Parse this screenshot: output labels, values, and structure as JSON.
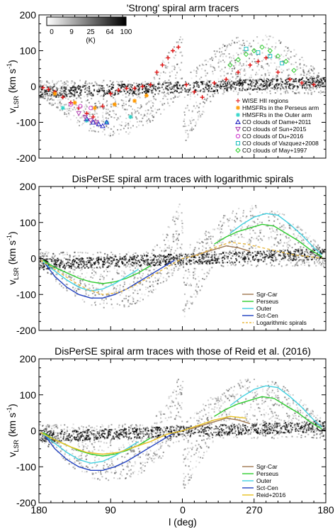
{
  "figure": {
    "shared_xlabel": "l (deg)",
    "x_ticks": [
      "180",
      "90",
      "0",
      "270",
      "180"
    ],
    "ylabel_main": "v",
    "ylabel_sub": "LSR",
    "ylabel_unit": " (km s",
    "ylabel_sup": "-1",
    "ylabel_close": ")"
  },
  "colorbar": {
    "ticks": [
      "0",
      "9",
      "25",
      "64",
      "100"
    ],
    "unit": "(K)"
  },
  "chart_data": [
    {
      "type": "scatter",
      "title": "'Strong' spiral arm tracers",
      "xlabel": "l (deg)",
      "ylabel": "vLSR (km s-1)",
      "xlim": [
        180,
        -180
      ],
      "ylim": [
        -200,
        200
      ],
      "y_ticks": [
        "200",
        "100",
        "0",
        "-100",
        "-200"
      ],
      "legend_position": "bottom-right",
      "background": "grey-scale CO brightness-temperature map (0-100 K)",
      "series": [
        {
          "name": "WISE HII regions",
          "marker": "+",
          "color": "#e01010",
          "x": [
            175,
            168,
            160,
            150,
            140,
            130,
            120,
            112,
            100,
            90,
            80,
            70,
            60,
            50,
            40,
            32,
            25,
            18,
            12,
            5,
            -5,
            -15,
            -25,
            -40,
            -55,
            -70,
            -85,
            -95,
            -105,
            -120,
            -135,
            -150,
            -165
          ],
          "y": [
            -3,
            -8,
            -15,
            -30,
            -45,
            -60,
            -75,
            -85,
            -55,
            -20,
            -10,
            -5,
            -5,
            0,
            5,
            40,
            60,
            80,
            100,
            110,
            5,
            -15,
            -30,
            10,
            20,
            40,
            60,
            70,
            80,
            40,
            20,
            10,
            5
          ]
        },
        {
          "name": "HMSFRs in the Perseus arm",
          "marker": "*",
          "color": "#ff9900",
          "x": [
            160,
            135,
            110,
            85,
            60,
            45
          ],
          "y": [
            -20,
            -45,
            -60,
            -50,
            -40,
            -25
          ]
        },
        {
          "name": "HMSFRs in the Outer arm",
          "marker": "*",
          "color": "#2fd4c8",
          "x": [
            150,
            120,
            95,
            65
          ],
          "y": [
            -60,
            -95,
            -100,
            -85
          ]
        },
        {
          "name": "CO clouds of Dame+2011",
          "marker": "triangle",
          "color": "#2020c0",
          "x": [
            120,
            112,
            105,
            100,
            95
          ],
          "y": [
            -90,
            -100,
            -105,
            -110,
            -100
          ]
        },
        {
          "name": "CO clouds of Sun+2015",
          "marker": "triangle-down",
          "color": "#b040b0",
          "x": [
            130,
            122,
            115,
            108
          ],
          "y": [
            -75,
            -85,
            -95,
            -100
          ]
        },
        {
          "name": "CO clouds of Du+2016",
          "marker": "circle",
          "color": "#d040d0",
          "x": [
            140,
            128,
            115
          ],
          "y": [
            -50,
            -55,
            -60
          ]
        },
        {
          "name": "CO clouds of Vazquez+2008",
          "marker": "square",
          "color": "#20c0c0",
          "x": [
            -80,
            -95,
            -110,
            -125
          ],
          "y": [
            105,
            95,
            85,
            65
          ]
        },
        {
          "name": "CO clouds of May+1997",
          "marker": "diamond",
          "color": "#30d030",
          "x": [
            -60,
            -70,
            -80,
            -90,
            -100,
            -110,
            -120,
            -130,
            -140
          ],
          "y": [
            60,
            75,
            90,
            100,
            110,
            100,
            85,
            70,
            45
          ]
        }
      ]
    },
    {
      "type": "line",
      "title": "DisPerSE spiral arm traces with logarithmic spirals",
      "xlabel": "l (deg)",
      "ylabel": "vLSR (km s-1)",
      "xlim": [
        180,
        -180
      ],
      "ylim": [
        -200,
        200
      ],
      "y_ticks": [
        "200",
        "100",
        "0",
        "-100",
        "-200"
      ],
      "legend_position": "bottom-right",
      "background": "grey-scale CO brightness-temperature map (0-100 K)",
      "series": [
        {
          "name": "Sgr-Car",
          "color": "#a07850",
          "dash": "solid",
          "x": [
            -10,
            -25,
            -40,
            -55,
            -70,
            -85
          ],
          "y": [
            5,
            15,
            25,
            35,
            30,
            20
          ]
        },
        {
          "name": "Perseus",
          "color": "#2ecc2e",
          "dash": "solid",
          "x": [
            175,
            160,
            145,
            130,
            115,
            100,
            85,
            70,
            55,
            40,
            -40,
            -55,
            -70,
            -85,
            -100,
            -115,
            -130,
            -145,
            -160,
            -175
          ],
          "y": [
            -5,
            -25,
            -40,
            -55,
            -65,
            -70,
            -65,
            -55,
            -40,
            -20,
            40,
            60,
            75,
            85,
            95,
            90,
            70,
            50,
            25,
            5
          ]
        },
        {
          "name": "Outer",
          "color": "#40d0e0",
          "dash": "solid",
          "x": [
            175,
            160,
            145,
            130,
            115,
            100,
            85,
            70,
            55,
            -60,
            -75,
            -90,
            -105,
            -120,
            -135,
            -150,
            -165,
            -175
          ],
          "y": [
            -10,
            -35,
            -60,
            -80,
            -90,
            -85,
            -70,
            -50,
            -30,
            70,
            95,
            115,
            125,
            120,
            95,
            65,
            30,
            10
          ]
        },
        {
          "name": "Sct-Cen",
          "color": "#2040c0",
          "dash": "solid",
          "x": [
            172,
            160,
            145,
            130,
            115,
            100,
            85,
            70,
            55,
            40,
            25,
            10
          ],
          "y": [
            -15,
            -50,
            -80,
            -100,
            -110,
            -110,
            -100,
            -85,
            -65,
            -45,
            -25,
            -5
          ]
        },
        {
          "name": "Logarithmic spirals",
          "color": "#e8b840",
          "dash": "dashed",
          "x": [
            178,
            160,
            140,
            120,
            100,
            80,
            60,
            40,
            20,
            0,
            -20,
            -40,
            -60,
            -80,
            -100,
            -120,
            -140,
            -160,
            -178
          ],
          "y": [
            -5,
            -30,
            -60,
            -85,
            -100,
            -95,
            -75,
            -50,
            -25,
            0,
            10,
            30,
            45,
            40,
            30,
            20,
            10,
            5,
            0
          ]
        }
      ]
    },
    {
      "type": "line",
      "title": "DisPerSE spiral arm traces with those of Reid et al. (2016)",
      "xlabel": "l (deg)",
      "ylabel": "vLSR (km s-1)",
      "xlim": [
        180,
        -180
      ],
      "ylim": [
        -200,
        200
      ],
      "y_ticks": [
        "200",
        "100",
        "0",
        "-100",
        "-200"
      ],
      "legend_position": "bottom-right",
      "background": "grey-scale CO brightness-temperature map (0-100 K)",
      "series": [
        {
          "name": "Sgr-Car",
          "color": "#a07850",
          "dash": "solid",
          "x": [
            -10,
            -25,
            -40,
            -55,
            -70,
            -85
          ],
          "y": [
            5,
            15,
            25,
            35,
            30,
            20
          ]
        },
        {
          "name": "Perseus",
          "color": "#2ecc2e",
          "dash": "solid",
          "x": [
            175,
            160,
            145,
            130,
            115,
            100,
            85,
            70,
            55,
            40,
            -40,
            -55,
            -70,
            -85,
            -100,
            -115,
            -130,
            -145,
            -160,
            -175
          ],
          "y": [
            -5,
            -25,
            -40,
            -55,
            -65,
            -70,
            -65,
            -55,
            -40,
            -20,
            40,
            60,
            75,
            85,
            95,
            90,
            70,
            50,
            25,
            5
          ]
        },
        {
          "name": "Outer",
          "color": "#40d0e0",
          "dash": "solid",
          "x": [
            175,
            160,
            145,
            130,
            115,
            100,
            85,
            70,
            55,
            -60,
            -75,
            -90,
            -105,
            -120,
            -135,
            -150,
            -165,
            -175
          ],
          "y": [
            -10,
            -35,
            -60,
            -80,
            -90,
            -85,
            -70,
            -50,
            -30,
            70,
            95,
            115,
            125,
            120,
            95,
            65,
            30,
            10
          ]
        },
        {
          "name": "Sct-Cen",
          "color": "#2040c0",
          "dash": "solid",
          "x": [
            172,
            160,
            145,
            130,
            115,
            100,
            85,
            70,
            55,
            40,
            25,
            10
          ],
          "y": [
            -15,
            -50,
            -80,
            -100,
            -110,
            -110,
            -100,
            -85,
            -65,
            -45,
            -25,
            -5
          ]
        },
        {
          "name": "Reid+2016",
          "color": "#e8c020",
          "dash": "solid",
          "x": [
            178,
            160,
            140,
            120,
            100,
            80,
            60,
            40,
            20,
            0,
            -20,
            -40,
            -60,
            -80
          ],
          "y": [
            -5,
            -25,
            -45,
            -60,
            -65,
            -60,
            -45,
            -30,
            -10,
            0,
            15,
            30,
            40,
            35
          ]
        }
      ]
    }
  ]
}
